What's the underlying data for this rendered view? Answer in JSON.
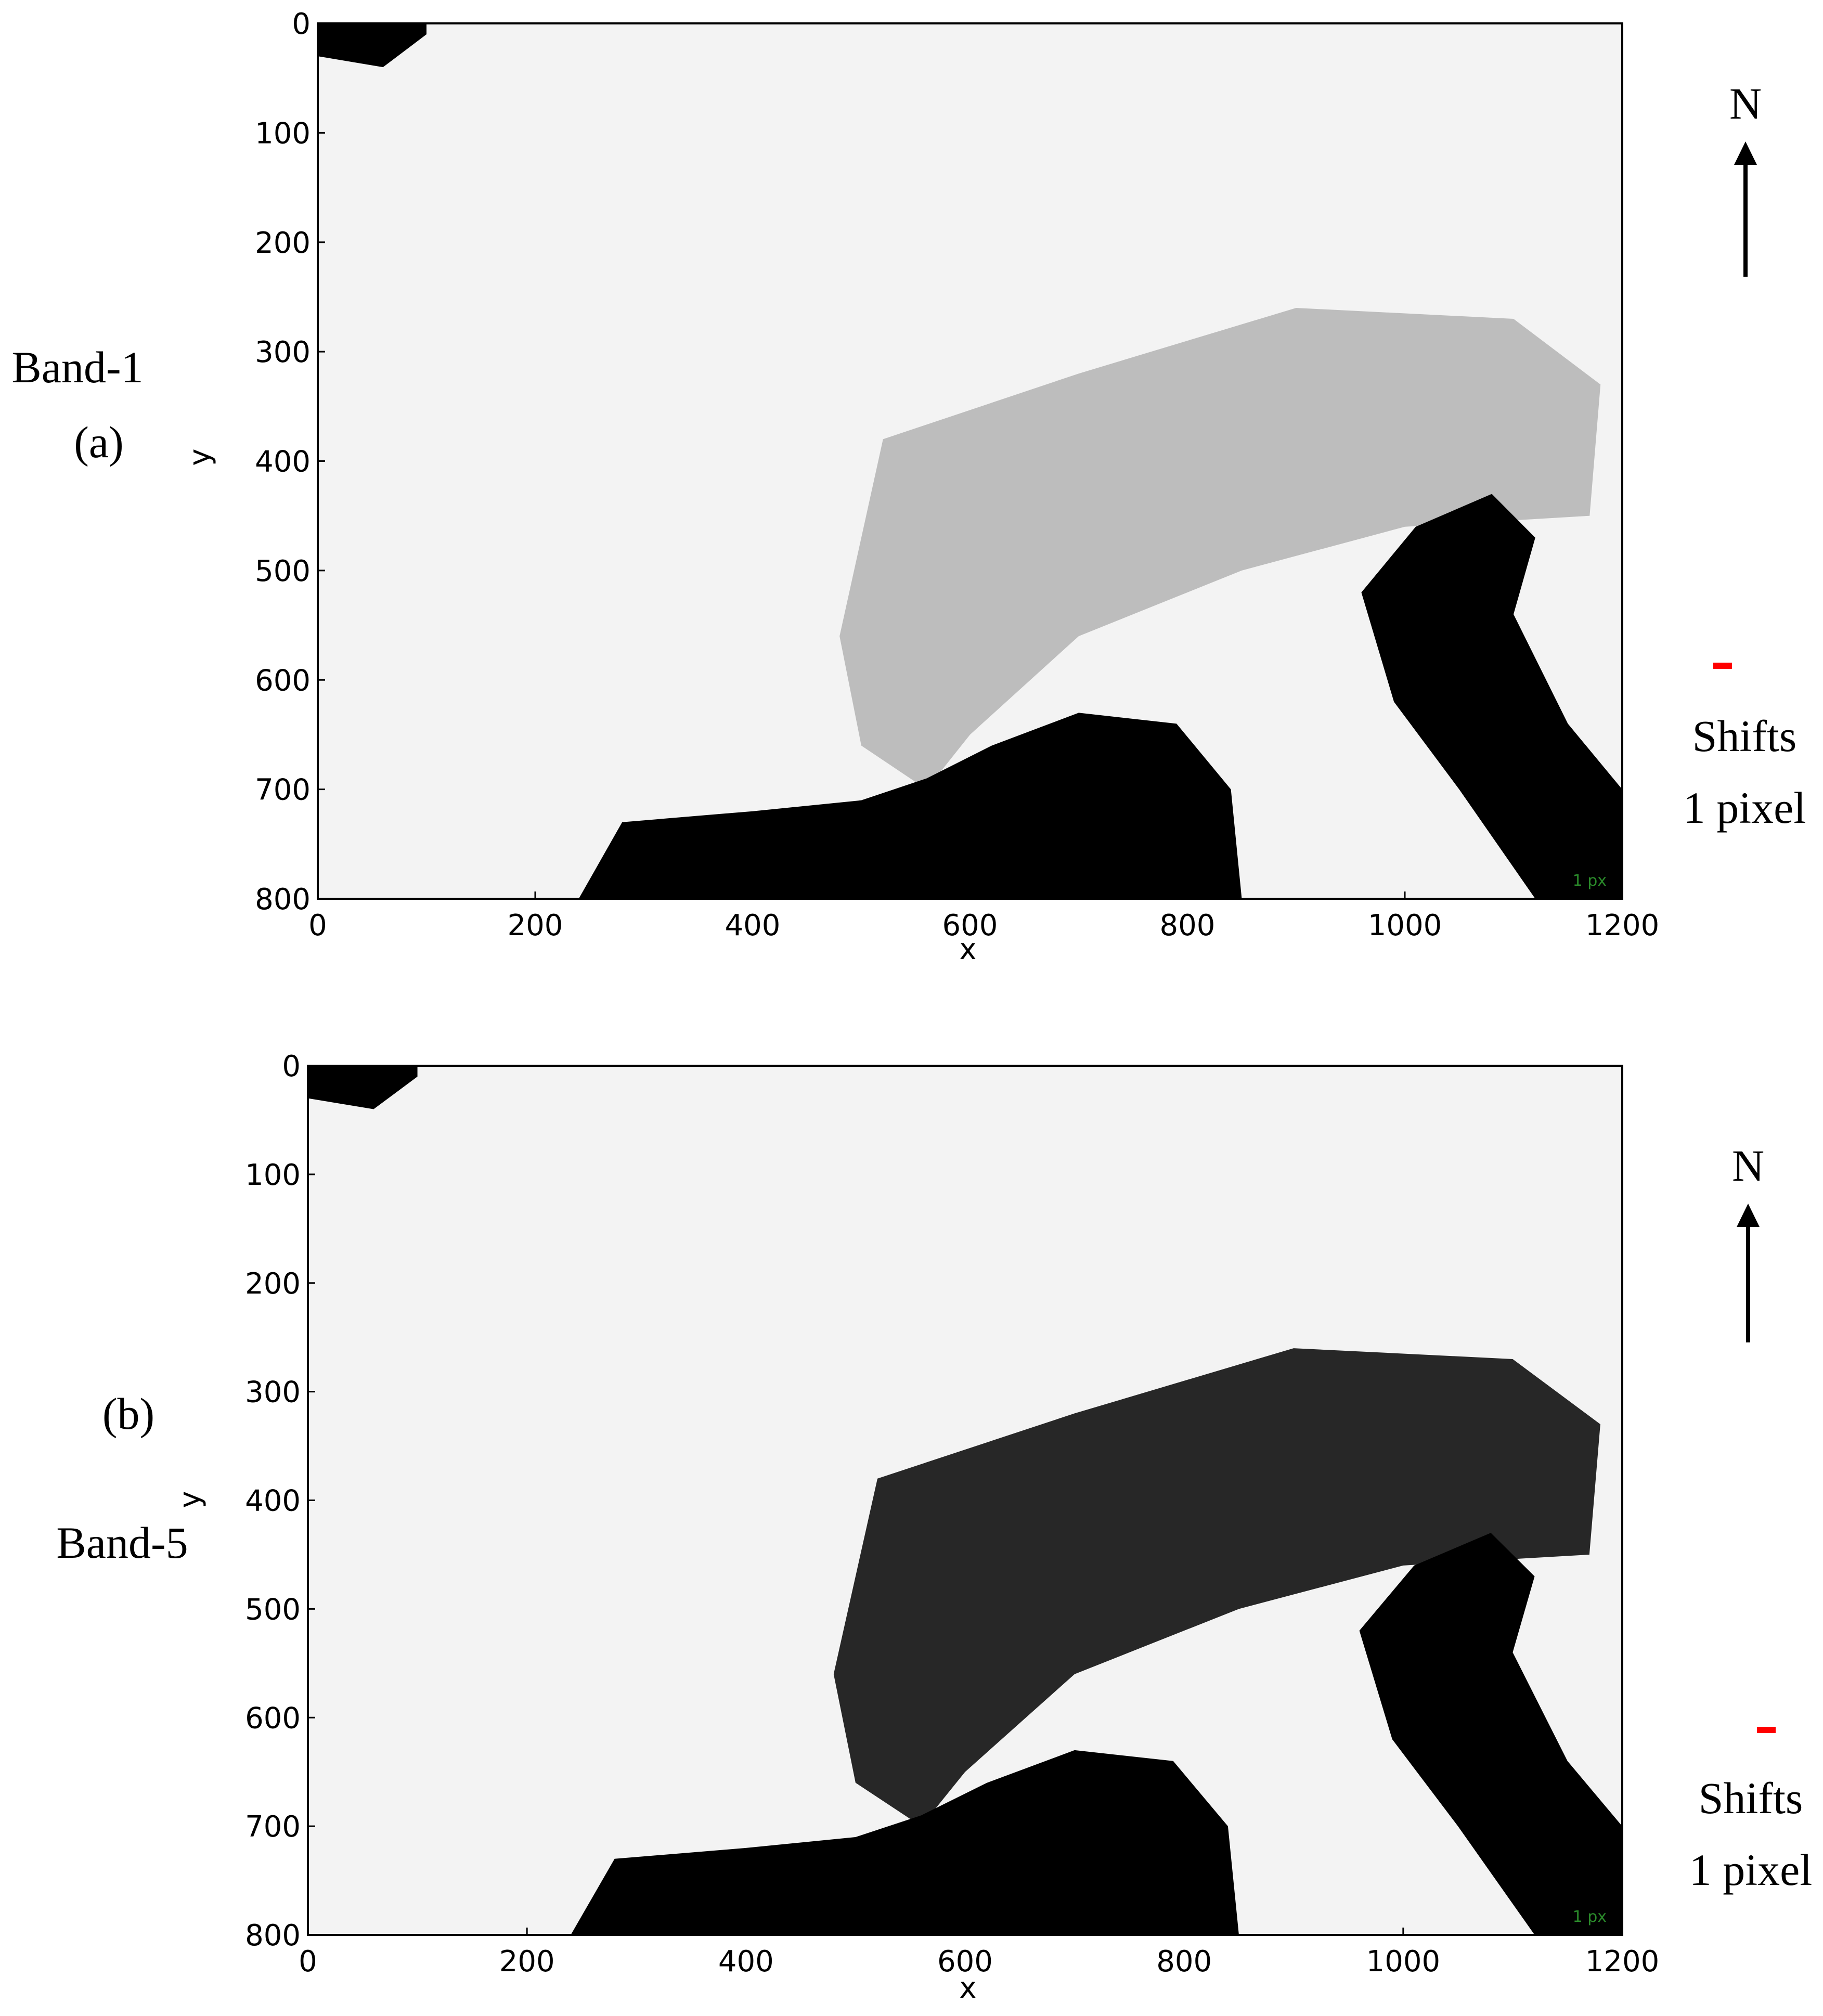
{
  "chart_data": [
    {
      "type": "image",
      "panel_label": "(a)",
      "band_label": "Band-1",
      "x_label": "x",
      "y_label": "y",
      "xlim": [
        0,
        1200
      ],
      "ylim": [
        800,
        0
      ],
      "xticks": [
        0,
        200,
        400,
        600,
        800,
        1000,
        1200
      ],
      "yticks": [
        0,
        100,
        200,
        300,
        400,
        500,
        600,
        700,
        800
      ],
      "north_label": "N",
      "legend_lines": [
        "Shifts",
        "1 pixel"
      ],
      "legend_color": "#ff0000",
      "scale_label": "1 px"
    },
    {
      "type": "image",
      "panel_label": "(b)",
      "band_label": "Band-5",
      "x_label": "x",
      "y_label": "y",
      "xlim": [
        0,
        1200
      ],
      "ylim": [
        800,
        0
      ],
      "xticks": [
        0,
        200,
        400,
        600,
        800,
        1000,
        1200
      ],
      "yticks": [
        0,
        100,
        200,
        300,
        400,
        500,
        600,
        700,
        800
      ],
      "north_label": "N",
      "legend_lines": [
        "Shifts",
        "1 pixel"
      ],
      "legend_color": "#ff0000",
      "scale_label": "1 px"
    }
  ]
}
